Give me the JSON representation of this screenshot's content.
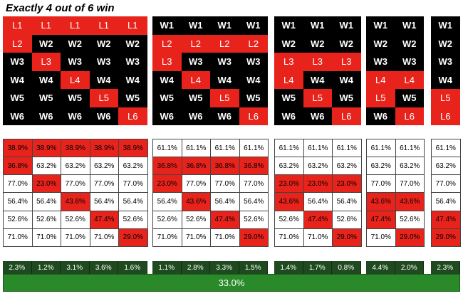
{
  "title": "Exactly 4 out of 6 win",
  "blocks": [
    {
      "win": [
        "W1",
        "W2",
        "W3",
        "W4",
        "W5",
        "W6"
      ],
      "loss": [
        "L1",
        "L2",
        "L3",
        "L4",
        "L5",
        "L6"
      ],
      "win_pct": [
        "61.1%",
        "63.2%",
        "77.0%",
        "56.4%",
        "52.6%",
        "71.0%"
      ],
      "loss_pct": [
        "38.9%",
        "36.8%",
        "23.0%",
        "43.6%",
        "47.4%",
        "29.0%"
      ],
      "losing_cols_per_row": [
        [
          0,
          1,
          2,
          3,
          4
        ],
        [
          0
        ],
        [
          1
        ],
        [
          2
        ],
        [
          3
        ],
        [
          4
        ]
      ],
      "totals": [
        "2.3%",
        "1.2%",
        "3.1%",
        "3.6%",
        "1.6%"
      ]
    },
    {
      "losing_cols_per_row": [
        [],
        [
          0,
          1,
          2,
          3
        ],
        [
          0
        ],
        [
          1
        ],
        [
          2
        ],
        [
          3
        ]
      ],
      "totals": [
        "1.1%",
        "2.8%",
        "3.3%",
        "1.5%"
      ]
    },
    {
      "losing_cols_per_row": [
        [],
        [],
        [
          0,
          1,
          2
        ],
        [
          0
        ],
        [
          1
        ],
        [
          2
        ]
      ],
      "totals": [
        "1.4%",
        "1.7%",
        "0.8%"
      ]
    },
    {
      "losing_cols_per_row": [
        [],
        [],
        [],
        [
          0,
          1
        ],
        [
          0
        ],
        [
          1
        ]
      ],
      "totals": [
        "4.4%",
        "2.0%"
      ]
    },
    {
      "losing_cols_per_row": [
        [],
        [],
        [],
        [],
        [
          0
        ],
        [
          0
        ]
      ],
      "totals": [
        "2.3%"
      ]
    }
  ],
  "grand_total": "33.0%",
  "colors": {
    "loss": "#e8231c",
    "win_top": "#000000",
    "total_bar": "#2a8a2a",
    "block_total": "#1f4a1f"
  }
}
